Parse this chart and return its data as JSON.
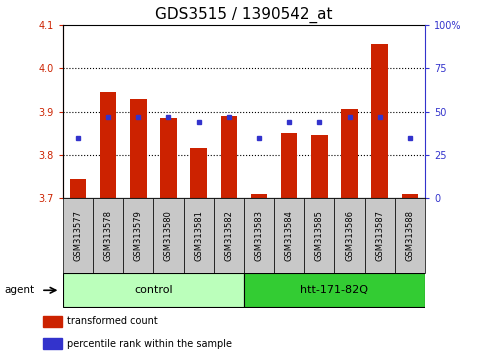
{
  "title": "GDS3515 / 1390542_at",
  "samples": [
    "GSM313577",
    "GSM313578",
    "GSM313579",
    "GSM313580",
    "GSM313581",
    "GSM313582",
    "GSM313583",
    "GSM313584",
    "GSM313585",
    "GSM313586",
    "GSM313587",
    "GSM313588"
  ],
  "bar_values": [
    3.745,
    3.945,
    3.93,
    3.885,
    3.815,
    3.89,
    3.71,
    3.85,
    3.845,
    3.905,
    4.055,
    3.71
  ],
  "percentile_values": [
    35,
    47,
    47,
    47,
    44,
    47,
    35,
    44,
    44,
    47,
    47,
    35
  ],
  "bar_bottom": 3.7,
  "ylim": [
    3.7,
    4.1
  ],
  "yticks": [
    3.7,
    3.8,
    3.9,
    4.0,
    4.1
  ],
  "right_yticks": [
    0,
    25,
    50,
    75,
    100
  ],
  "right_ylabels": [
    "0",
    "25",
    "50",
    "75",
    "100%"
  ],
  "bar_color": "#cc2200",
  "percentile_color": "#3333cc",
  "tick_label_color_left": "#cc2200",
  "tick_label_color_right": "#3333cc",
  "groups": [
    {
      "label": "control",
      "start": 0,
      "end": 5,
      "color": "#bbffbb"
    },
    {
      "label": "htt-171-82Q",
      "start": 6,
      "end": 11,
      "color": "#33cc33"
    }
  ],
  "agent_label": "agent",
  "legend_items": [
    {
      "label": "transformed count",
      "color": "#cc2200"
    },
    {
      "label": "percentile rank within the sample",
      "color": "#3333cc"
    }
  ],
  "bar_width": 0.55,
  "title_fontsize": 11,
  "tick_fontsize": 7,
  "sample_fontsize": 6,
  "label_fontsize": 8
}
